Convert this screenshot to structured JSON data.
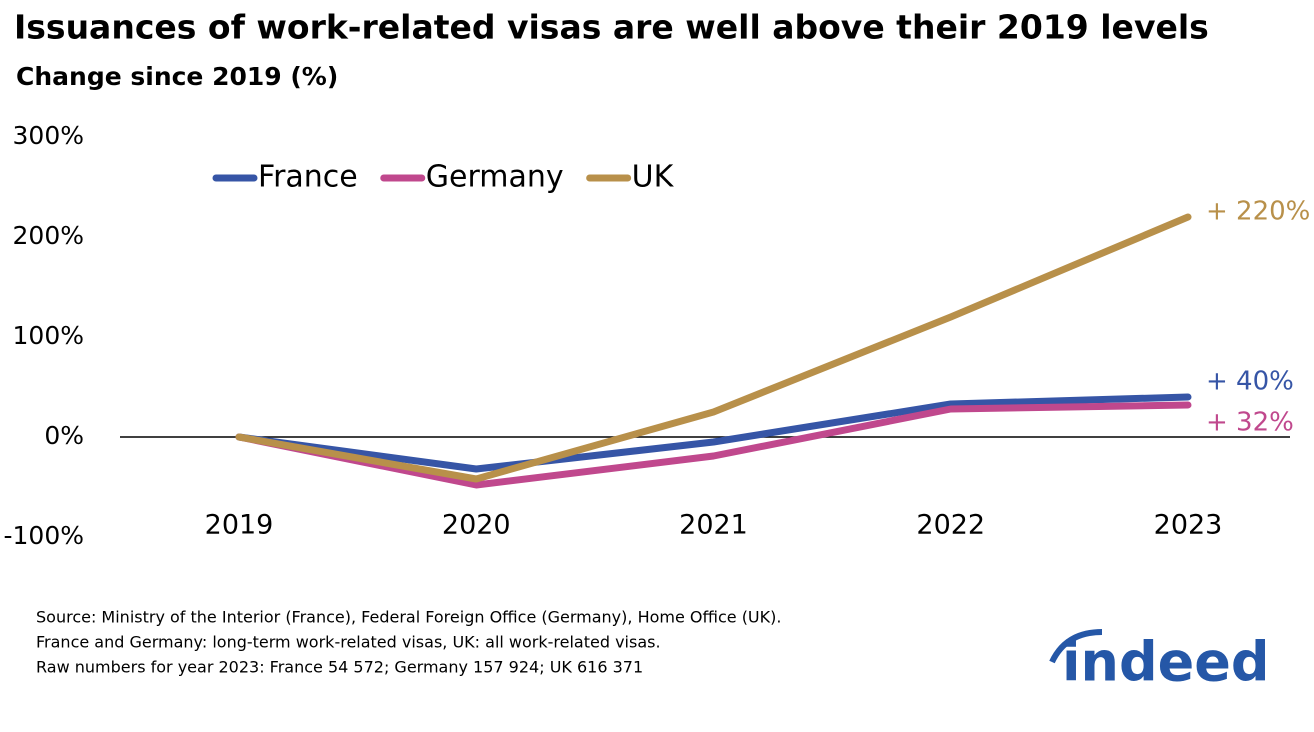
{
  "chart_data": {
    "type": "line",
    "title": "Issuances of work-related visas are well above their 2019 levels",
    "subtitle": "Change since 2019 (%)",
    "categories": [
      "2019",
      "2020",
      "2021",
      "2022",
      "2023"
    ],
    "series": [
      {
        "name": "France",
        "color": "#3655a6",
        "values": [
          0,
          -32,
          -5,
          33,
          40
        ],
        "value_labels": [
          null,
          null,
          null,
          null,
          "+ 40%"
        ]
      },
      {
        "name": "Germany",
        "color": "#c0488d",
        "values": [
          0,
          -48,
          -19,
          28,
          32
        ],
        "value_labels": [
          null,
          null,
          null,
          null,
          "+ 32%"
        ]
      },
      {
        "name": "UK",
        "color": "#b8904a",
        "values": [
          0,
          -42,
          25,
          120,
          220
        ],
        "value_labels": [
          null,
          null,
          null,
          null,
          "+ 220%"
        ]
      }
    ],
    "ylim": [
      -100,
      300
    ],
    "yticks": [
      {
        "value": 300,
        "label": "300%"
      },
      {
        "value": 200,
        "label": "200%"
      },
      {
        "value": 100,
        "label": "100%"
      },
      {
        "value": 0,
        "label": "0%"
      },
      {
        "value": -100,
        "label": "-100%"
      }
    ],
    "grid": false,
    "legend": "top-left",
    "notes": [
      "Source: Ministry of the Interior (France), Federal Foreign Office (Germany), Home Office (UK).",
      "France and Germany: long-term work-related visas, UK: all work-related visas.",
      "Raw numbers for year 2023: France 54 572; Germany 157 924; UK 616 371"
    ],
    "logo": "indeed"
  }
}
